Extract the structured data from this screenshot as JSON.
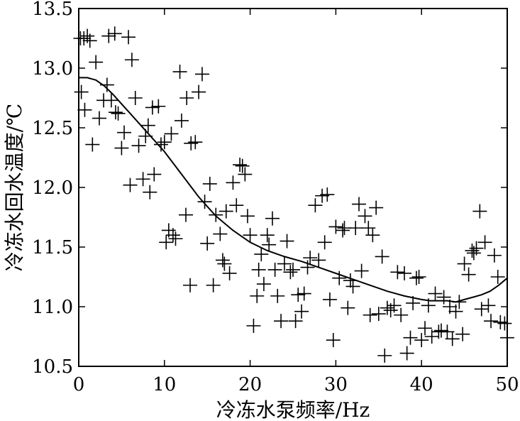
{
  "chart_data": {
    "type": "scatter",
    "title": "",
    "xlabel": "冷冻水泵频率/Hz",
    "ylabel": "冷冻水回水温度/℃",
    "xlim": [
      0,
      50
    ],
    "ylim": [
      10.5,
      13.5
    ],
    "xticks": [
      0,
      10,
      20,
      30,
      40,
      50
    ],
    "xtick_labels": [
      "0",
      "10",
      "20",
      "30",
      "40",
      "50"
    ],
    "yticks": [
      10.5,
      11.0,
      11.5,
      12.0,
      12.5,
      13.0,
      13.5
    ],
    "ytick_labels": [
      "10.5",
      "11.0",
      "11.5",
      "12.0",
      "12.5",
      "13.0",
      "13.5"
    ],
    "grid": false,
    "marker": "+",
    "series": [
      {
        "kind": "scatter",
        "points": [
          [
            0.2,
            13.25
          ],
          [
            0.6,
            13.25
          ],
          [
            1.0,
            13.27
          ],
          [
            1.3,
            13.23
          ],
          [
            2.0,
            13.05
          ],
          [
            3.5,
            13.27
          ],
          [
            4.2,
            13.29
          ],
          [
            5.8,
            13.26
          ],
          [
            6.2,
            13.07
          ],
          [
            0.3,
            12.8
          ],
          [
            0.7,
            12.65
          ],
          [
            1.6,
            12.36
          ],
          [
            2.4,
            12.58
          ],
          [
            2.9,
            12.73
          ],
          [
            3.3,
            12.86
          ],
          [
            3.8,
            12.73
          ],
          [
            4.3,
            12.63
          ],
          [
            4.6,
            12.62
          ],
          [
            5.0,
            12.33
          ],
          [
            5.3,
            12.46
          ],
          [
            6.0,
            12.02
          ],
          [
            6.6,
            12.75
          ],
          [
            7.0,
            12.35
          ],
          [
            7.5,
            12.07
          ],
          [
            7.8,
            12.43
          ],
          [
            8.1,
            12.52
          ],
          [
            8.3,
            11.96
          ],
          [
            8.6,
            12.67
          ],
          [
            8.8,
            12.11
          ],
          [
            9.3,
            12.68
          ],
          [
            9.6,
            12.36
          ],
          [
            10.0,
            12.38
          ],
          [
            10.2,
            11.54
          ],
          [
            10.5,
            11.64
          ],
          [
            10.8,
            12.45
          ],
          [
            11.0,
            11.6
          ],
          [
            11.3,
            11.57
          ],
          [
            11.8,
            12.97
          ],
          [
            12.0,
            12.56
          ],
          [
            12.5,
            11.77
          ],
          [
            12.6,
            12.75
          ],
          [
            13.0,
            11.18
          ],
          [
            13.1,
            12.37
          ],
          [
            13.6,
            12.38
          ],
          [
            14.0,
            12.8
          ],
          [
            14.4,
            12.95
          ],
          [
            14.7,
            11.88
          ],
          [
            15.0,
            11.53
          ],
          [
            15.3,
            12.03
          ],
          [
            15.7,
            11.18
          ],
          [
            16.0,
            11.77
          ],
          [
            16.5,
            11.61
          ],
          [
            16.8,
            11.39
          ],
          [
            17.0,
            11.36
          ],
          [
            17.2,
            11.8
          ],
          [
            17.6,
            11.28
          ],
          [
            18.0,
            12.04
          ],
          [
            18.4,
            11.85
          ],
          [
            18.8,
            12.19
          ],
          [
            19.1,
            12.18
          ],
          [
            19.4,
            12.11
          ],
          [
            19.7,
            11.76
          ],
          [
            20.0,
            11.6
          ],
          [
            20.4,
            10.84
          ],
          [
            20.8,
            11.09
          ],
          [
            21.0,
            11.31
          ],
          [
            21.3,
            11.44
          ],
          [
            21.6,
            11.19
          ],
          [
            22.0,
            11.6
          ],
          [
            22.2,
            11.52
          ],
          [
            22.6,
            11.74
          ],
          [
            22.9,
            11.31
          ],
          [
            23.2,
            11.09
          ],
          [
            23.6,
            10.88
          ],
          [
            24.0,
            11.36
          ],
          [
            24.3,
            11.55
          ],
          [
            24.7,
            11.29
          ],
          [
            25.0,
            11.31
          ],
          [
            25.3,
            10.88
          ],
          [
            25.6,
            11.1
          ],
          [
            26.0,
            10.96
          ],
          [
            26.3,
            11.11
          ],
          [
            26.7,
            11.33
          ],
          [
            27.0,
            11.41
          ],
          [
            27.6,
            11.85
          ],
          [
            28.0,
            11.39
          ],
          [
            28.4,
            11.93
          ],
          [
            28.7,
            11.54
          ],
          [
            29.0,
            11.94
          ],
          [
            29.3,
            11.06
          ],
          [
            29.7,
            10.72
          ],
          [
            30.0,
            11.67
          ],
          [
            30.4,
            11.24
          ],
          [
            30.8,
            11.64
          ],
          [
            31.0,
            11.66
          ],
          [
            31.4,
            10.99
          ],
          [
            31.7,
            11.22
          ],
          [
            32.0,
            11.17
          ],
          [
            32.3,
            11.66
          ],
          [
            32.7,
            11.86
          ],
          [
            33.0,
            11.3
          ],
          [
            33.4,
            11.76
          ],
          [
            33.8,
            11.66
          ],
          [
            34.0,
            10.93
          ],
          [
            34.3,
            11.6
          ],
          [
            34.7,
            11.83
          ],
          [
            35.0,
            10.94
          ],
          [
            35.4,
            11.42
          ],
          [
            35.7,
            10.59
          ],
          [
            36.0,
            10.99
          ],
          [
            36.4,
            10.97
          ],
          [
            36.8,
            11.01
          ],
          [
            37.2,
            11.29
          ],
          [
            37.6,
            10.93
          ],
          [
            38.0,
            11.28
          ],
          [
            38.3,
            10.61
          ],
          [
            38.7,
            10.74
          ],
          [
            39.0,
            11.03
          ],
          [
            39.4,
            11.24
          ],
          [
            39.7,
            11.25
          ],
          [
            40.0,
            10.72
          ],
          [
            40.4,
            10.82
          ],
          [
            40.8,
            11.01
          ],
          [
            41.2,
            10.75
          ],
          [
            41.6,
            11.11
          ],
          [
            42.0,
            10.79
          ],
          [
            42.3,
            10.8
          ],
          [
            42.6,
            11.08
          ],
          [
            43.0,
            10.79
          ],
          [
            43.3,
            11.0
          ],
          [
            43.6,
            10.73
          ],
          [
            44.0,
            10.96
          ],
          [
            44.4,
            11.04
          ],
          [
            44.8,
            10.77
          ],
          [
            45.0,
            11.36
          ],
          [
            45.5,
            11.27
          ],
          [
            45.9,
            11.47
          ],
          [
            46.1,
            11.45
          ],
          [
            46.4,
            11.49
          ],
          [
            46.8,
            11.8
          ],
          [
            47.0,
            10.98
          ],
          [
            47.4,
            11.54
          ],
          [
            47.8,
            11.01
          ],
          [
            48.1,
            10.88
          ],
          [
            48.5,
            11.43
          ],
          [
            48.9,
            11.25
          ],
          [
            49.2,
            10.87
          ],
          [
            49.7,
            10.86
          ],
          [
            50.0,
            10.74
          ]
        ]
      },
      {
        "kind": "line",
        "x": [
          0,
          1,
          2,
          3,
          4,
          5,
          6,
          8,
          10,
          12,
          14,
          16,
          18,
          20,
          22,
          24,
          26,
          28,
          30,
          32,
          34,
          36,
          38,
          40,
          41,
          42,
          43,
          44,
          45,
          46,
          47,
          48,
          49,
          50
        ],
        "y": [
          12.92,
          12.92,
          12.9,
          12.85,
          12.78,
          12.7,
          12.62,
          12.46,
          12.3,
          12.11,
          11.92,
          11.76,
          11.64,
          11.54,
          11.47,
          11.42,
          11.38,
          11.33,
          11.28,
          11.23,
          11.18,
          11.13,
          11.09,
          11.06,
          11.05,
          11.05,
          11.05,
          11.04,
          11.06,
          11.08,
          11.1,
          11.13,
          11.18,
          11.24
        ]
      }
    ]
  }
}
